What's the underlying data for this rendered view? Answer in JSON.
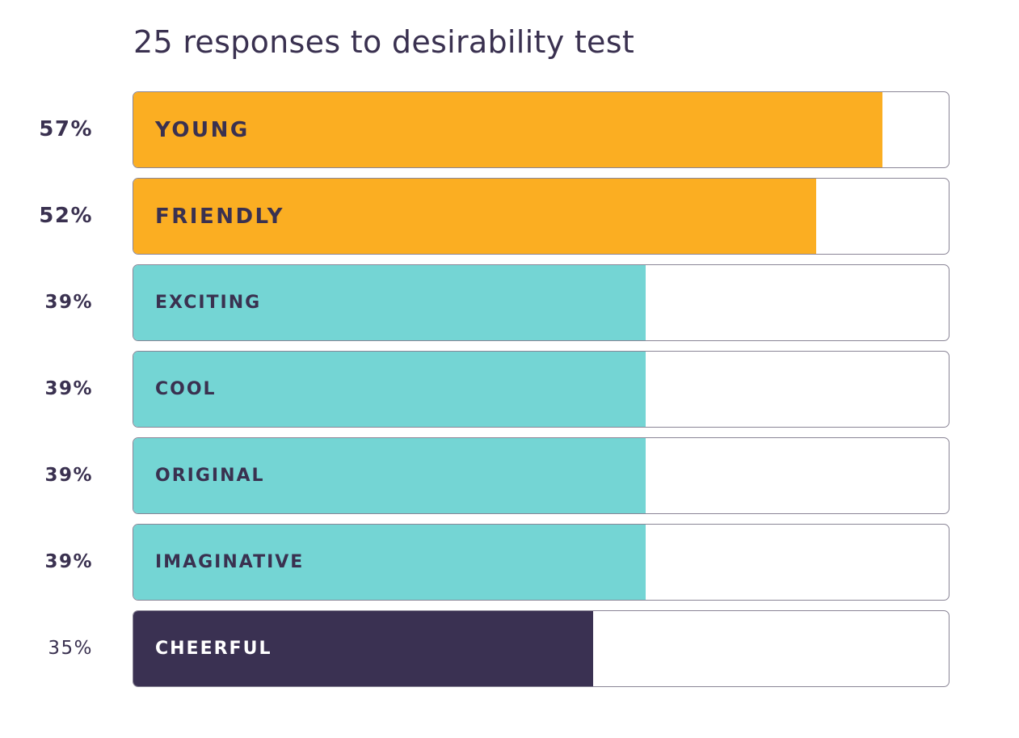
{
  "chart_data": {
    "type": "bar",
    "orientation": "horizontal",
    "title": "25 responses to desirability test",
    "xlim": [
      0,
      62
    ],
    "categories": [
      "YOUNG",
      "FRIENDLY",
      "EXCITING",
      "COOL",
      "ORIGINAL",
      "IMAGINATIVE",
      "CHEERFUL"
    ],
    "values": [
      57,
      52,
      39,
      39,
      39,
      39,
      35
    ],
    "value_labels": [
      "57%",
      "52%",
      "39%",
      "39%",
      "39%",
      "39%",
      "35%"
    ],
    "bar_colors": [
      "#fbae22",
      "#fbae22",
      "#74d5d4",
      "#74d5d4",
      "#74d5d4",
      "#74d5d4",
      "#3a3152"
    ],
    "label_colors": [
      "#3a3150",
      "#3a3150",
      "#3a3150",
      "#3a3150",
      "#3a3150",
      "#3a3150",
      "#ffffff"
    ]
  }
}
